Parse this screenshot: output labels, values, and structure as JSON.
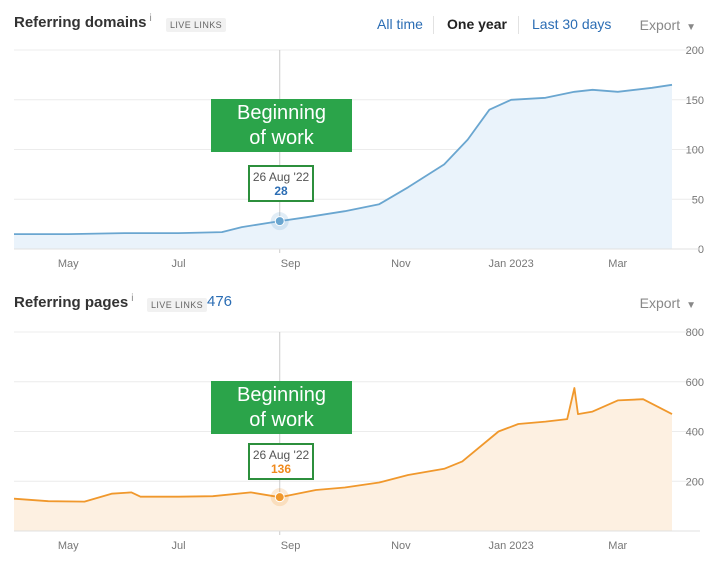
{
  "header": {
    "tabs": [
      {
        "label": "All time",
        "active": false
      },
      {
        "label": "One year",
        "active": true
      },
      {
        "label": "Last 30 days",
        "active": false
      }
    ],
    "export_label": "Export",
    "caret_icon": "chevron-down-icon"
  },
  "panels": [
    {
      "title": "Referring domains",
      "info_glyph": "i",
      "badge": "LIVE LINKS",
      "count": "",
      "callout_line1": "Beginning",
      "callout_line2": "of work",
      "tooltip": {
        "date": "26 Aug '22",
        "value": "28"
      }
    },
    {
      "title": "Referring pages",
      "info_glyph": "i",
      "badge": "LIVE LINKS",
      "count": "476",
      "callout_line1": "Beginning",
      "callout_line2": "of work",
      "tooltip": {
        "date": "26 Aug '22",
        "value": "136"
      }
    }
  ],
  "colors": {
    "domains_line": "#6aa6d0",
    "domains_fill": "#eaf3fb",
    "pages_line": "#f0982c",
    "pages_fill": "#fdf0e1",
    "callout_bg": "#2ba44a",
    "tooltip_border": "#2c8f3c"
  },
  "chart_data": [
    {
      "type": "area",
      "x_ticks": [
        "May",
        "Jul",
        "Sep",
        "Nov",
        "Jan 2023",
        "Mar"
      ],
      "x_range": [
        "2022-04-01",
        "2023-03-31"
      ],
      "ylim": [
        0,
        200
      ],
      "y_ticks": [
        0,
        50,
        100,
        150,
        200
      ],
      "grid": true,
      "highlight": {
        "x": "2022-08-26",
        "y": 28
      },
      "points": [
        [
          "2022-04-01",
          15
        ],
        [
          "2022-05-01",
          15
        ],
        [
          "2022-06-01",
          16
        ],
        [
          "2022-07-01",
          16
        ],
        [
          "2022-07-25",
          17
        ],
        [
          "2022-08-05",
          22
        ],
        [
          "2022-08-26",
          28
        ],
        [
          "2022-09-10",
          32
        ],
        [
          "2022-10-01",
          38
        ],
        [
          "2022-10-20",
          45
        ],
        [
          "2022-11-05",
          62
        ],
        [
          "2022-11-25",
          85
        ],
        [
          "2022-12-08",
          110
        ],
        [
          "2022-12-20",
          140
        ],
        [
          "2023-01-01",
          150
        ],
        [
          "2023-01-20",
          152
        ],
        [
          "2023-02-05",
          158
        ],
        [
          "2023-02-15",
          160
        ],
        [
          "2023-03-01",
          158
        ],
        [
          "2023-03-20",
          162
        ],
        [
          "2023-03-31",
          165
        ]
      ]
    },
    {
      "type": "area",
      "x_ticks": [
        "May",
        "Jul",
        "Sep",
        "Nov",
        "Jan 2023",
        "Mar"
      ],
      "x_range": [
        "2022-04-01",
        "2023-03-31"
      ],
      "ylim": [
        0,
        800
      ],
      "y_ticks": [
        200,
        400,
        600,
        800
      ],
      "grid": true,
      "highlight": {
        "x": "2022-08-26",
        "y": 136
      },
      "points": [
        [
          "2022-04-01",
          130
        ],
        [
          "2022-04-20",
          120
        ],
        [
          "2022-05-10",
          118
        ],
        [
          "2022-05-25",
          150
        ],
        [
          "2022-06-05",
          155
        ],
        [
          "2022-06-10",
          138
        ],
        [
          "2022-07-01",
          138
        ],
        [
          "2022-07-20",
          140
        ],
        [
          "2022-08-10",
          155
        ],
        [
          "2022-08-26",
          136
        ],
        [
          "2022-09-15",
          165
        ],
        [
          "2022-10-01",
          175
        ],
        [
          "2022-10-20",
          195
        ],
        [
          "2022-11-05",
          225
        ],
        [
          "2022-11-25",
          250
        ],
        [
          "2022-12-05",
          280
        ],
        [
          "2022-12-25",
          400
        ],
        [
          "2023-01-05",
          430
        ],
        [
          "2023-01-20",
          440
        ],
        [
          "2023-02-01",
          450
        ],
        [
          "2023-02-05",
          575
        ],
        [
          "2023-02-07",
          470
        ],
        [
          "2023-02-15",
          480
        ],
        [
          "2023-03-01",
          525
        ],
        [
          "2023-03-15",
          530
        ],
        [
          "2023-03-31",
          470
        ]
      ]
    }
  ]
}
